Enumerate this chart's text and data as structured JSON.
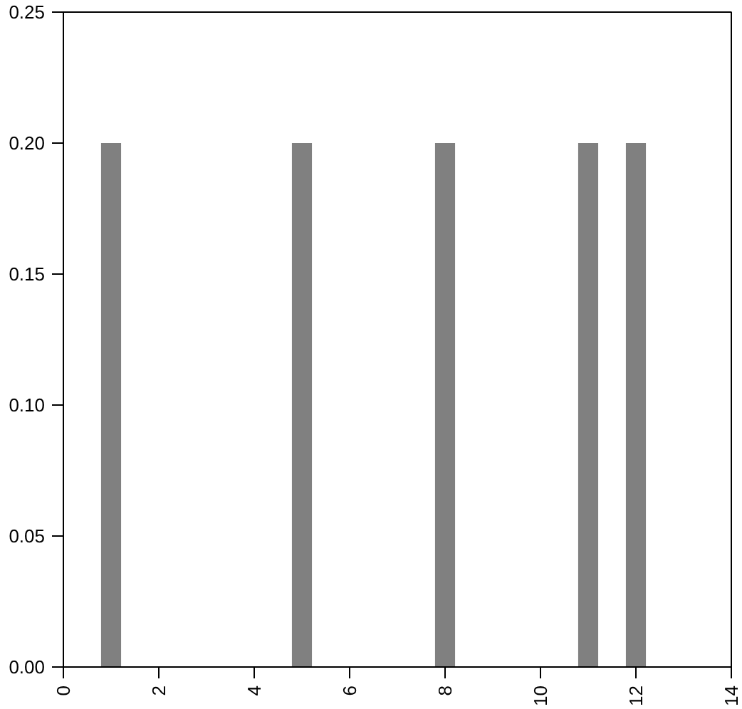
{
  "chart_data": {
    "type": "bar",
    "x": [
      1,
      5,
      8,
      11,
      12
    ],
    "values": [
      0.2,
      0.2,
      0.2,
      0.2,
      0.2
    ],
    "color": "#808080",
    "xlim": [
      0,
      14
    ],
    "xticks": [
      0,
      2,
      4,
      6,
      8,
      10,
      12,
      14
    ],
    "ylim": [
      0,
      0.25
    ],
    "yticks": [
      {
        "value": 0,
        "label": "0.00"
      },
      {
        "value": 0.05,
        "label": "0.05"
      },
      {
        "value": 0.1,
        "label": "0.10"
      },
      {
        "value": 0.15,
        "label": "0.15"
      },
      {
        "value": 0.2,
        "label": "0.20"
      },
      {
        "value": 0.25,
        "label": "0.25"
      }
    ],
    "grid": false
  }
}
